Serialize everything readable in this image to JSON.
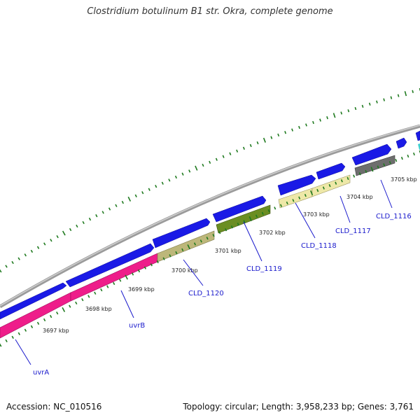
{
  "title": "Clostridium botulinum B1 str. Okra, complete genome",
  "footer": {
    "accession": "Accession: NC_010516",
    "topology": "Topology: circular; Length: 3,958,233 bp; Genes: 3,761"
  },
  "colors": {
    "backbone": "#9b9b9b",
    "tick": "#1f7a1f",
    "forward_gene": "#1a1ae6",
    "uvrA": "#ee1d8a",
    "uvrB": "#ee1d8a",
    "CLD_1120": "#bdb77a",
    "CLD_1119": "#6b8e23",
    "CLD_1118": "#eee8a8",
    "CLD_1117": "#eee8a8",
    "CLD_1116": "#6e6e6e",
    "partial_gene": "#3fd0d0",
    "label": "#1a1acc"
  },
  "kbp_labels": [
    "3697 kbp",
    "3698 kbp",
    "3699 kbp",
    "3700 kbp",
    "3701 kbp",
    "3702 kbp",
    "3703 kbp",
    "3704 kbp",
    "3705 kbp"
  ],
  "gene_labels": [
    "uvrA",
    "uvrB",
    "CLD_1120",
    "CLD_1119",
    "CLD_1118",
    "CLD_1117",
    "CLD_1116"
  ]
}
